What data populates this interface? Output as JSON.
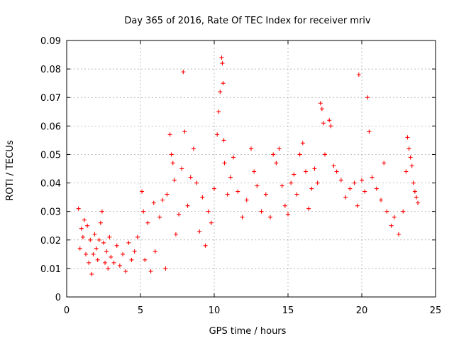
{
  "chart_data": {
    "type": "scatter",
    "title": "Day 365 of 2016, Rate Of TEC Index for receiver mriv",
    "xlabel": "GPS time / hours",
    "ylabel": "ROTI / TECUs",
    "xlim": [
      0,
      25
    ],
    "ylim": [
      0,
      0.09
    ],
    "xticks": [
      0,
      5,
      10,
      15,
      20,
      25
    ],
    "xtick_labels": [
      "0",
      "5",
      "10",
      "15",
      "20",
      "25"
    ],
    "yticks": [
      0,
      0.01,
      0.02,
      0.03,
      0.04,
      0.05,
      0.06,
      0.07,
      0.08,
      0.09
    ],
    "ytick_labels": [
      "0",
      "0.01",
      "0.02",
      "0.03",
      "0.04",
      "0.05",
      "0.06",
      "0.07",
      "0.08",
      "0.09"
    ],
    "grid": true,
    "marker": "+",
    "series": [
      {
        "name": "ROTI",
        "color": "#ff0000",
        "points": [
          [
            0.8,
            0.031
          ],
          [
            0.9,
            0.017
          ],
          [
            1.0,
            0.024
          ],
          [
            1.1,
            0.021
          ],
          [
            1.2,
            0.027
          ],
          [
            1.3,
            0.015
          ],
          [
            1.4,
            0.025
          ],
          [
            1.5,
            0.012
          ],
          [
            1.6,
            0.02
          ],
          [
            1.7,
            0.008
          ],
          [
            1.8,
            0.015
          ],
          [
            1.9,
            0.022
          ],
          [
            2.0,
            0.017
          ],
          [
            2.1,
            0.013
          ],
          [
            2.2,
            0.02
          ],
          [
            2.3,
            0.026
          ],
          [
            2.4,
            0.03
          ],
          [
            2.5,
            0.019
          ],
          [
            2.6,
            0.012
          ],
          [
            2.7,
            0.016
          ],
          [
            2.8,
            0.01
          ],
          [
            2.9,
            0.021
          ],
          [
            3.0,
            0.014
          ],
          [
            3.2,
            0.012
          ],
          [
            3.4,
            0.018
          ],
          [
            3.6,
            0.011
          ],
          [
            3.8,
            0.015
          ],
          [
            4.0,
            0.009
          ],
          [
            4.2,
            0.019
          ],
          [
            4.4,
            0.013
          ],
          [
            4.6,
            0.016
          ],
          [
            4.8,
            0.021
          ],
          [
            5.1,
            0.037
          ],
          [
            5.2,
            0.03
          ],
          [
            5.3,
            0.013
          ],
          [
            5.5,
            0.026
          ],
          [
            5.7,
            0.009
          ],
          [
            5.9,
            0.033
          ],
          [
            6.0,
            0.016
          ],
          [
            6.3,
            0.028
          ],
          [
            6.5,
            0.034
          ],
          [
            6.7,
            0.01
          ],
          [
            6.8,
            0.036
          ],
          [
            7.0,
            0.057
          ],
          [
            7.1,
            0.05
          ],
          [
            7.2,
            0.047
          ],
          [
            7.3,
            0.041
          ],
          [
            7.4,
            0.022
          ],
          [
            7.6,
            0.029
          ],
          [
            7.8,
            0.045
          ],
          [
            7.9,
            0.079
          ],
          [
            8.0,
            0.058
          ],
          [
            8.2,
            0.032
          ],
          [
            8.4,
            0.042
          ],
          [
            8.6,
            0.052
          ],
          [
            8.8,
            0.04
          ],
          [
            9.0,
            0.023
          ],
          [
            9.2,
            0.035
          ],
          [
            9.4,
            0.018
          ],
          [
            9.6,
            0.03
          ],
          [
            9.8,
            0.026
          ],
          [
            10.0,
            0.038
          ],
          [
            10.2,
            0.057
          ],
          [
            10.3,
            0.065
          ],
          [
            10.4,
            0.072
          ],
          [
            10.5,
            0.084
          ],
          [
            10.55,
            0.082
          ],
          [
            10.6,
            0.075
          ],
          [
            10.65,
            0.055
          ],
          [
            10.7,
            0.047
          ],
          [
            10.9,
            0.036
          ],
          [
            11.1,
            0.042
          ],
          [
            11.3,
            0.049
          ],
          [
            11.6,
            0.037
          ],
          [
            11.9,
            0.028
          ],
          [
            12.2,
            0.034
          ],
          [
            12.5,
            0.052
          ],
          [
            12.7,
            0.044
          ],
          [
            12.9,
            0.039
          ],
          [
            13.2,
            0.03
          ],
          [
            13.5,
            0.036
          ],
          [
            13.8,
            0.028
          ],
          [
            14.0,
            0.05
          ],
          [
            14.2,
            0.047
          ],
          [
            14.4,
            0.052
          ],
          [
            14.6,
            0.039
          ],
          [
            14.8,
            0.032
          ],
          [
            15.0,
            0.029
          ],
          [
            15.2,
            0.04
          ],
          [
            15.4,
            0.043
          ],
          [
            15.6,
            0.036
          ],
          [
            15.8,
            0.05
          ],
          [
            16.0,
            0.054
          ],
          [
            16.2,
            0.044
          ],
          [
            16.4,
            0.031
          ],
          [
            16.6,
            0.038
          ],
          [
            16.8,
            0.045
          ],
          [
            17.0,
            0.04
          ],
          [
            17.2,
            0.068
          ],
          [
            17.3,
            0.066
          ],
          [
            17.4,
            0.061
          ],
          [
            17.5,
            0.05
          ],
          [
            17.8,
            0.062
          ],
          [
            17.9,
            0.06
          ],
          [
            18.1,
            0.046
          ],
          [
            18.3,
            0.044
          ],
          [
            18.6,
            0.041
          ],
          [
            18.9,
            0.035
          ],
          [
            19.2,
            0.038
          ],
          [
            19.5,
            0.04
          ],
          [
            19.7,
            0.032
          ],
          [
            19.8,
            0.078
          ],
          [
            20.0,
            0.041
          ],
          [
            20.2,
            0.037
          ],
          [
            20.4,
            0.07
          ],
          [
            20.5,
            0.058
          ],
          [
            20.7,
            0.042
          ],
          [
            21.0,
            0.038
          ],
          [
            21.3,
            0.034
          ],
          [
            21.5,
            0.047
          ],
          [
            21.7,
            0.03
          ],
          [
            22.0,
            0.025
          ],
          [
            22.2,
            0.028
          ],
          [
            22.5,
            0.022
          ],
          [
            22.8,
            0.03
          ],
          [
            23.0,
            0.044
          ],
          [
            23.1,
            0.056
          ],
          [
            23.2,
            0.052
          ],
          [
            23.3,
            0.049
          ],
          [
            23.4,
            0.046
          ],
          [
            23.5,
            0.04
          ],
          [
            23.6,
            0.037
          ],
          [
            23.7,
            0.035
          ],
          [
            23.8,
            0.033
          ]
        ]
      }
    ]
  }
}
